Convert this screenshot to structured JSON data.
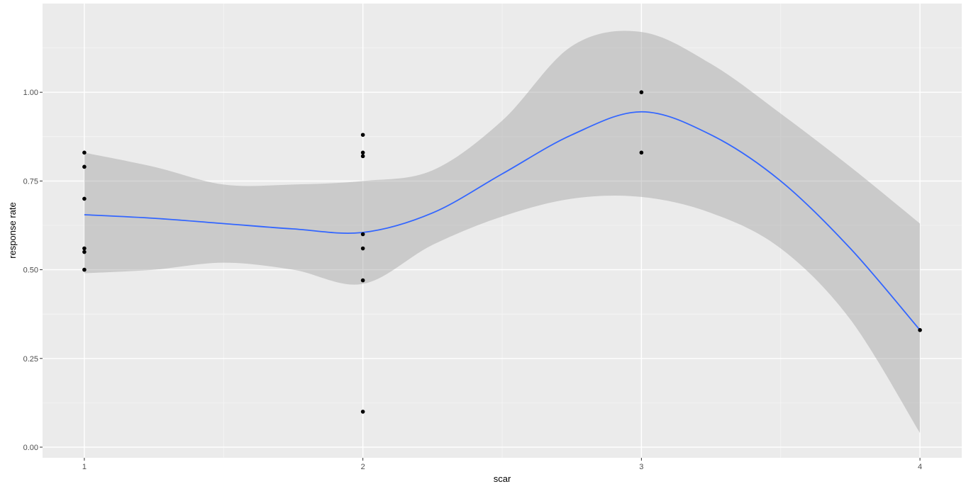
{
  "chart_data": {
    "type": "scatter",
    "xlabel": "scar",
    "ylabel": "response rate",
    "xlim": [
      0.85,
      4.15
    ],
    "ylim": [
      -0.03,
      1.25
    ],
    "x_ticks": [
      1,
      2,
      3,
      4
    ],
    "x_tick_labels": [
      "1",
      "2",
      "3",
      "4"
    ],
    "y_ticks": [
      0,
      0.25,
      0.5,
      0.75,
      1.0
    ],
    "y_tick_labels": [
      "0.00",
      "0.25",
      "0.50",
      "0.75",
      "1.00"
    ],
    "grid": true,
    "legend": "none",
    "points": [
      {
        "x": 1,
        "y": 0.83
      },
      {
        "x": 1,
        "y": 0.79
      },
      {
        "x": 1,
        "y": 0.7
      },
      {
        "x": 1,
        "y": 0.56
      },
      {
        "x": 1,
        "y": 0.55
      },
      {
        "x": 1,
        "y": 0.5
      },
      {
        "x": 2,
        "y": 0.88
      },
      {
        "x": 2,
        "y": 0.83
      },
      {
        "x": 2,
        "y": 0.82
      },
      {
        "x": 2,
        "y": 0.6
      },
      {
        "x": 2,
        "y": 0.56
      },
      {
        "x": 2,
        "y": 0.47
      },
      {
        "x": 2,
        "y": 0.1
      },
      {
        "x": 3,
        "y": 1.0
      },
      {
        "x": 3,
        "y": 0.83
      },
      {
        "x": 4,
        "y": 0.33
      }
    ],
    "smooth": {
      "x": [
        1.0,
        1.25,
        1.5,
        1.75,
        2.0,
        2.25,
        2.5,
        2.75,
        3.0,
        3.25,
        3.5,
        3.75,
        4.0
      ],
      "y": [
        0.655,
        0.645,
        0.63,
        0.615,
        0.605,
        0.66,
        0.77,
        0.88,
        0.945,
        0.88,
        0.75,
        0.56,
        0.33
      ],
      "lower": [
        0.49,
        0.5,
        0.52,
        0.5,
        0.46,
        0.57,
        0.65,
        0.7,
        0.705,
        0.66,
        0.56,
        0.36,
        0.04
      ],
      "upper": [
        0.83,
        0.79,
        0.74,
        0.74,
        0.75,
        0.78,
        0.92,
        1.13,
        1.17,
        1.08,
        0.94,
        0.79,
        0.63
      ]
    },
    "colors": {
      "panel": "#ebebeb",
      "grid_major": "#ffffff",
      "grid_minor": "#f5f5f5",
      "points": "#000000",
      "smooth_line": "#3366ff",
      "ribbon": "#999999"
    }
  }
}
